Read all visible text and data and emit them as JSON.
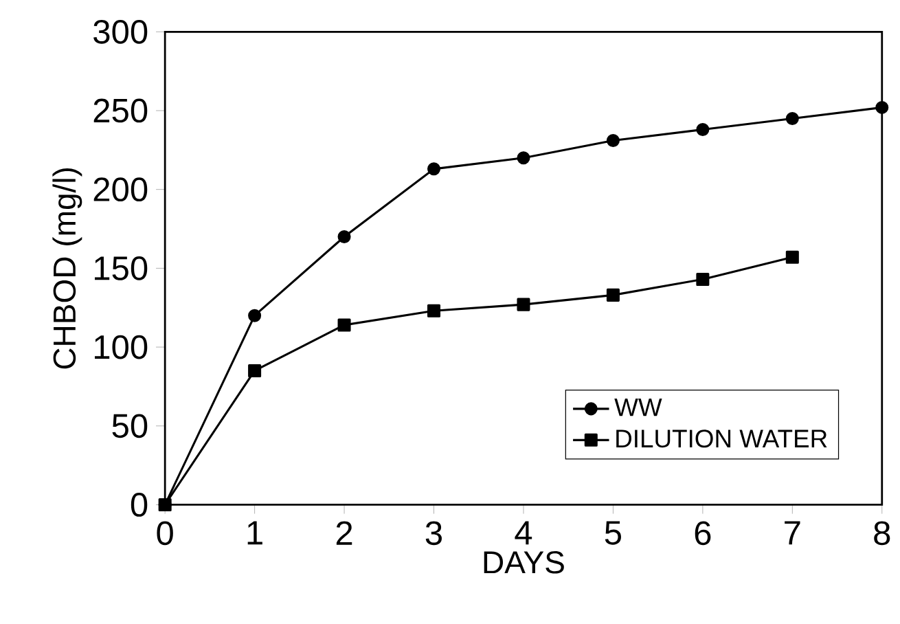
{
  "chart_data": {
    "type": "line",
    "xlabel": "DAYS",
    "ylabel": "CHBOD (mg/l)",
    "xlim": [
      0,
      8
    ],
    "ylim": [
      0,
      300
    ],
    "xticks": [
      0,
      1,
      2,
      3,
      4,
      5,
      6,
      7,
      8
    ],
    "yticks": [
      0,
      50,
      100,
      150,
      200,
      250,
      300
    ],
    "grid": false,
    "legend": "bottom right",
    "line_style": "solid",
    "series": [
      {
        "name": "WW",
        "color": "#000000",
        "marker": "circle",
        "x": [
          0,
          1,
          2,
          3,
          4,
          5,
          6,
          7,
          8
        ],
        "values": [
          0,
          120,
          170,
          213,
          220,
          231,
          238,
          245,
          252
        ]
      },
      {
        "name": "DILUTION WATER",
        "color": "#000000",
        "marker": "square",
        "x": [
          0,
          1,
          2,
          3,
          4,
          5,
          6,
          7
        ],
        "values": [
          0,
          85,
          114,
          123,
          127,
          133,
          143,
          157
        ]
      }
    ]
  }
}
